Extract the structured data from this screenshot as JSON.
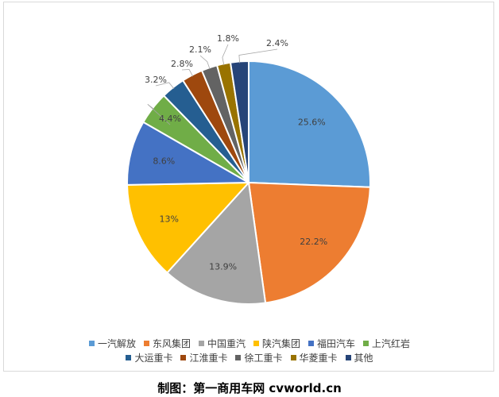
{
  "chart_data": {
    "type": "pie",
    "categories": [
      "一汽解放",
      "东风集团",
      "中国重汽",
      "陕汽集团",
      "福田汽车",
      "上汽红岩",
      "大运重卡",
      "江淮重卡",
      "徐工重卡",
      "华菱重卡",
      "其他"
    ],
    "values": [
      25.6,
      22.2,
      13.9,
      13,
      8.6,
      4.4,
      3.2,
      2.8,
      2.1,
      1.8,
      2.4
    ],
    "labels": [
      "25.6%",
      "22.2%",
      "13.9%",
      "13%",
      "8.6%",
      "4.4%",
      "3.2%",
      "2.8%",
      "2.1%",
      "1.8%",
      "2.4%"
    ],
    "colors": [
      "#5b9bd5",
      "#ed7d31",
      "#a5a5a5",
      "#ffc000",
      "#4472c4",
      "#70ad47",
      "#255e91",
      "#9e480e",
      "#636363",
      "#997300",
      "#264478"
    ],
    "legend_position": "bottom",
    "legend_rows": [
      [
        0,
        1,
        2,
        3,
        4,
        5
      ],
      [
        6,
        7,
        8,
        9,
        10
      ]
    ]
  },
  "caption": "制图：第一商用车网 cvworld.cn"
}
